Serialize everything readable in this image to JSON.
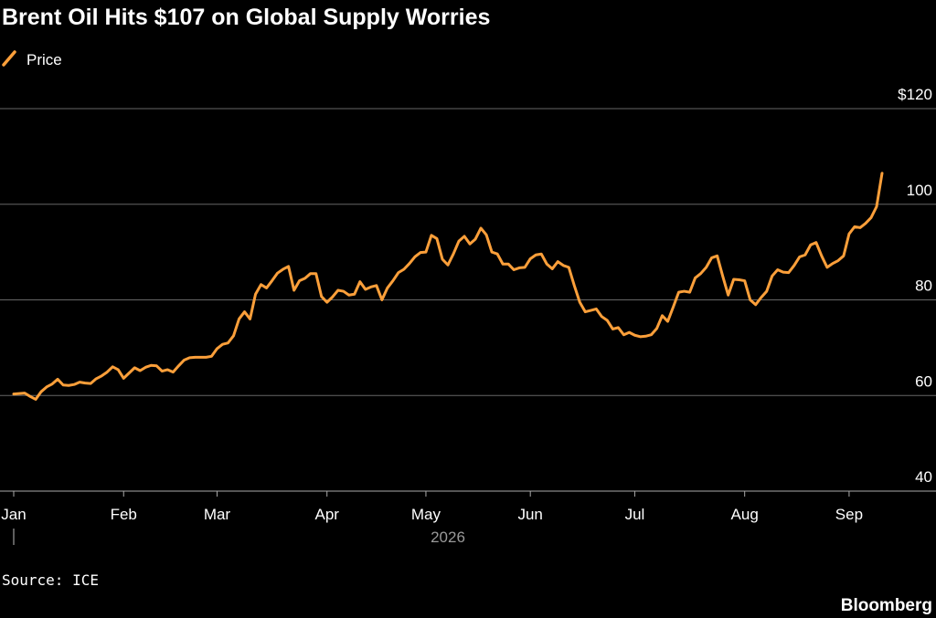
{
  "chart_data": {
    "type": "line",
    "title": "Brent Oil Hits $107 on Global Supply Worries",
    "source": "Source: ICE",
    "brand": "Bloomberg",
    "x_label": "2026",
    "categories": [
      "Jan",
      null,
      null,
      null,
      null,
      null,
      null,
      null,
      null,
      null,
      null,
      null,
      null,
      null,
      null,
      null,
      null,
      null,
      null,
      null,
      "Feb",
      null,
      null,
      null,
      null,
      null,
      null,
      null,
      null,
      null,
      null,
      null,
      null,
      null,
      null,
      null,
      null,
      "Mar",
      null,
      null,
      null,
      null,
      null,
      null,
      null,
      null,
      null,
      null,
      null,
      null,
      null,
      null,
      null,
      null,
      null,
      null,
      null,
      "Apr",
      null,
      null,
      null,
      null,
      null,
      null,
      null,
      null,
      null,
      null,
      null,
      null,
      null,
      null,
      null,
      null,
      null,
      "May",
      null,
      null,
      null,
      null,
      null,
      null,
      null,
      null,
      null,
      null,
      null,
      null,
      null,
      null,
      null,
      null,
      null,
      null,
      "Jun",
      null,
      null,
      null,
      null,
      null,
      null,
      null,
      null,
      null,
      null,
      null,
      null,
      null,
      null,
      null,
      null,
      null,
      null,
      "Jul",
      null,
      null,
      null,
      null,
      null,
      null,
      null,
      null,
      null,
      null,
      null,
      null,
      null,
      null,
      null,
      null,
      null,
      null,
      null,
      "Aug",
      null,
      null,
      null,
      null,
      null,
      null,
      null,
      null,
      null,
      null,
      null,
      null,
      null,
      null,
      null,
      null,
      null,
      null,
      "Sep",
      null,
      null,
      null,
      null,
      null,
      null
    ],
    "series": [
      {
        "name": "Price",
        "color": "#fb9f3a",
        "values": [
          60.3,
          60.4,
          60.5,
          59.8,
          59.2,
          60.8,
          61.8,
          62.4,
          63.4,
          62.2,
          62.1,
          62.3,
          62.8,
          62.6,
          62.5,
          63.5,
          64.1,
          64.9,
          66,
          65.4,
          63.6,
          64.7,
          65.8,
          65.2,
          65.9,
          66.3,
          66.2,
          65.1,
          65.4,
          64.9,
          66.2,
          67.4,
          67.9,
          68,
          68,
          68,
          68.2,
          69.8,
          70.7,
          71,
          72.5,
          76,
          77.5,
          76,
          81.2,
          83.2,
          82.5,
          84,
          85.6,
          86.4,
          87,
          82,
          84,
          84.5,
          85.5,
          85.5,
          80.7,
          79.5,
          80.6,
          82,
          81.8,
          81,
          81.2,
          83.8,
          82.2,
          82.7,
          83,
          80,
          82.5,
          84,
          85.7,
          86.4,
          87.6,
          89,
          89.9,
          90,
          93.5,
          92.8,
          88.5,
          87.3,
          89.6,
          92.3,
          93.3,
          91.7,
          92.7,
          95,
          93.6,
          90,
          89.6,
          87.5,
          87.5,
          86.3,
          86.7,
          86.8,
          88.6,
          89.4,
          89.6,
          87.5,
          86.5,
          88,
          87.2,
          86.8,
          83,
          79.5,
          77.5,
          77.8,
          78.1,
          76.5,
          75.7,
          73.9,
          74.2,
          72.7,
          73.2,
          72.6,
          72.3,
          72.4,
          72.7,
          74,
          76.7,
          75.5,
          78.5,
          81.6,
          81.8,
          81.6,
          84.6,
          85.5,
          86.8,
          88.8,
          89.2,
          85,
          81,
          84.3,
          84.2,
          84,
          80,
          79,
          80.5,
          81.8,
          85,
          86.3,
          85.8,
          85.7,
          87.2,
          89,
          89.4,
          91.5,
          92,
          89.2,
          86.8,
          87.6,
          88.2,
          89.2,
          93.8,
          95.3,
          95.1,
          96,
          97.2,
          99.5,
          106.5
        ]
      }
    ],
    "ylim": [
      40,
      120
    ],
    "yticks": [
      40,
      60,
      80,
      100,
      {
        "value": 120,
        "label": "$120"
      }
    ],
    "grid": true
  }
}
